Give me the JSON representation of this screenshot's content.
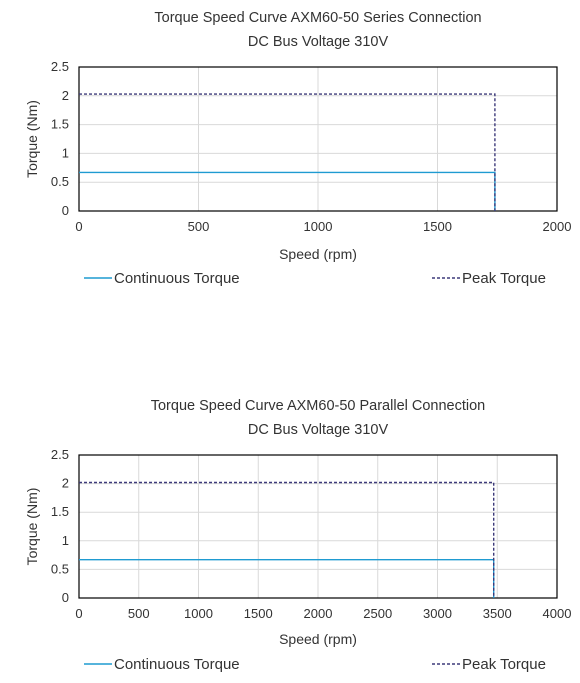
{
  "chart_data": [
    {
      "type": "line",
      "title": "Torque Speed Curve AXM60-50 Series Connection",
      "subtitle": "DC Bus Voltage 310V",
      "xlabel": "Speed (rpm)",
      "ylabel": "Torque (Nm)",
      "xlim": [
        0,
        2000
      ],
      "ylim": [
        0,
        2.5
      ],
      "xticks": [
        "0",
        "500",
        "1000",
        "1500",
        "2000"
      ],
      "yticks": [
        "0",
        "0.5",
        "1",
        "1.5",
        "2",
        "2.5"
      ],
      "grid": true,
      "legend_position": "bottom",
      "series": [
        {
          "name": "Continuous Torque",
          "color": "#1f9bd1",
          "dash": false,
          "points": [
            [
              0,
              0.67
            ],
            [
              1740,
              0.67
            ],
            [
              1740,
              0
            ]
          ]
        },
        {
          "name": "Peak Torque",
          "color": "#3d3a7a",
          "dash": true,
          "points": [
            [
              0,
              2.03
            ],
            [
              1740,
              2.03
            ],
            [
              1740,
              0
            ]
          ]
        }
      ]
    },
    {
      "type": "line",
      "title": "Torque Speed Curve AXM60-50 Parallel Connection",
      "subtitle": "DC Bus Voltage 310V",
      "xlabel": "Speed (rpm)",
      "ylabel": "Torque (Nm)",
      "xlim": [
        0,
        4000
      ],
      "ylim": [
        0,
        2.5
      ],
      "xticks": [
        "0",
        "500",
        "1000",
        "1500",
        "2000",
        "2500",
        "3000",
        "3500",
        "4000"
      ],
      "yticks": [
        "0",
        "0.5",
        "1",
        "1.5",
        "2",
        "2.5"
      ],
      "grid": true,
      "legend_position": "bottom",
      "series": [
        {
          "name": "Continuous Torque",
          "color": "#1f9bd1",
          "dash": false,
          "points": [
            [
              0,
              0.67
            ],
            [
              3470,
              0.67
            ],
            [
              3470,
              0
            ]
          ]
        },
        {
          "name": "Peak Torque",
          "color": "#3d3a7a",
          "dash": true,
          "points": [
            [
              0,
              2.02
            ],
            [
              3470,
              2.02
            ],
            [
              3470,
              0
            ]
          ]
        }
      ]
    }
  ]
}
